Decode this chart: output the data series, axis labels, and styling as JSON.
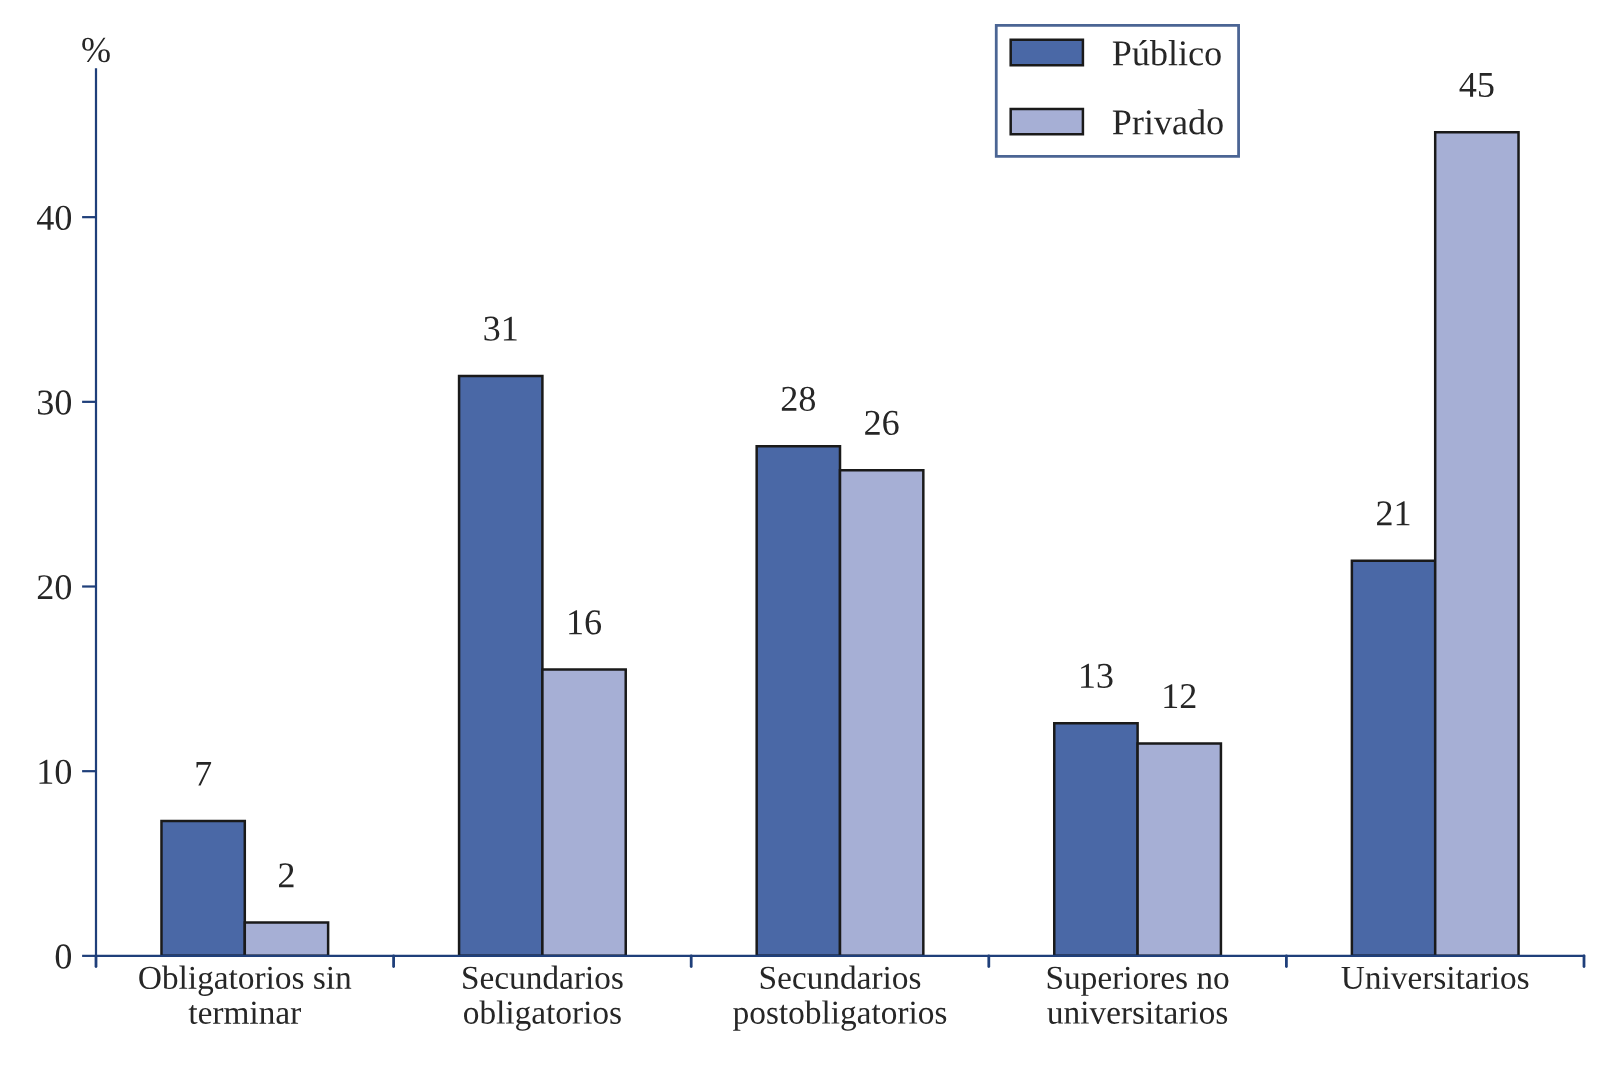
{
  "chart_data": {
    "type": "bar",
    "ylabel": "%",
    "categories": [
      "Obligatorios sin\nterminar",
      "Secundarios\nobligatorios",
      "Secundarios\npostobligatorios",
      "Superiores no\nuniversitarios",
      "Universitarios"
    ],
    "series": [
      {
        "name": "Público",
        "color": "#4a68a6",
        "values": [
          7.3,
          31.4,
          27.6,
          12.6,
          21.4
        ],
        "value_labels": [
          "7",
          "31",
          "28",
          "13",
          "21"
        ]
      },
      {
        "name": "Privado",
        "color": "#a6afd5",
        "values": [
          1.8,
          15.5,
          26.3,
          11.5,
          44.6
        ],
        "value_labels": [
          "2",
          "16",
          "26",
          "12",
          "45"
        ]
      }
    ],
    "ylim": [
      0,
      48
    ],
    "yticks": [
      0,
      10,
      20,
      30,
      40
    ],
    "grid": false,
    "legend": "top right"
  }
}
